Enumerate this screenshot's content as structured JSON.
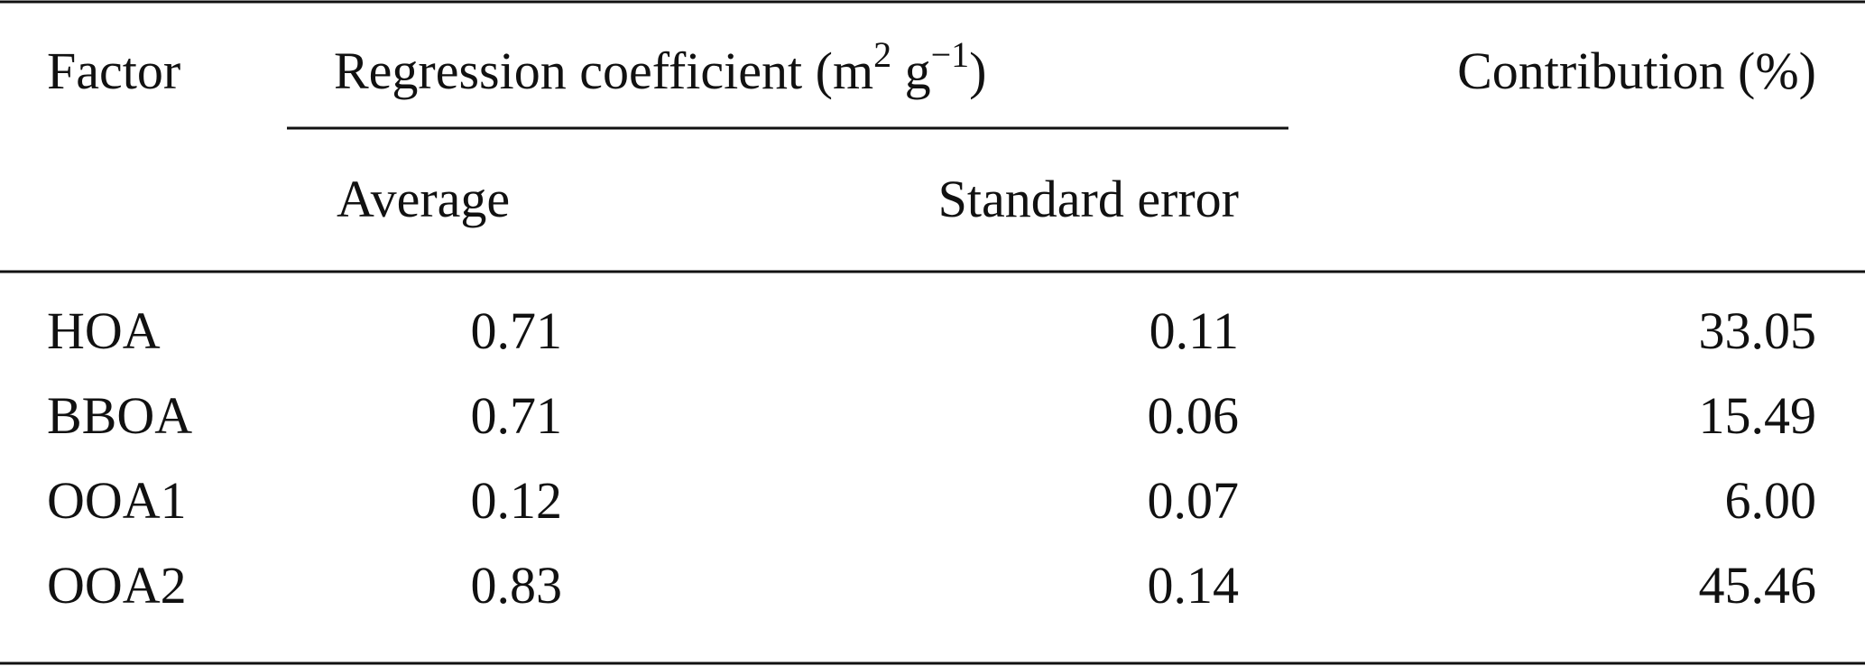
{
  "table": {
    "header": {
      "factor": "Factor",
      "regression_coefficient": [
        "Regression coefficient (m",
        "2",
        " g",
        "−1",
        ")"
      ],
      "contribution": "Contribution (%)",
      "average": "Average",
      "standard_error": "Standard error"
    },
    "rows": [
      [
        "HOA",
        "0.71",
        "0.11",
        "33.05"
      ],
      [
        "BBOA",
        "0.71",
        "0.06",
        "15.49"
      ],
      [
        "OOA1",
        "0.12",
        "0.07",
        "6.00"
      ],
      [
        "OOA2",
        "0.83",
        "0.14",
        "45.46"
      ]
    ]
  }
}
